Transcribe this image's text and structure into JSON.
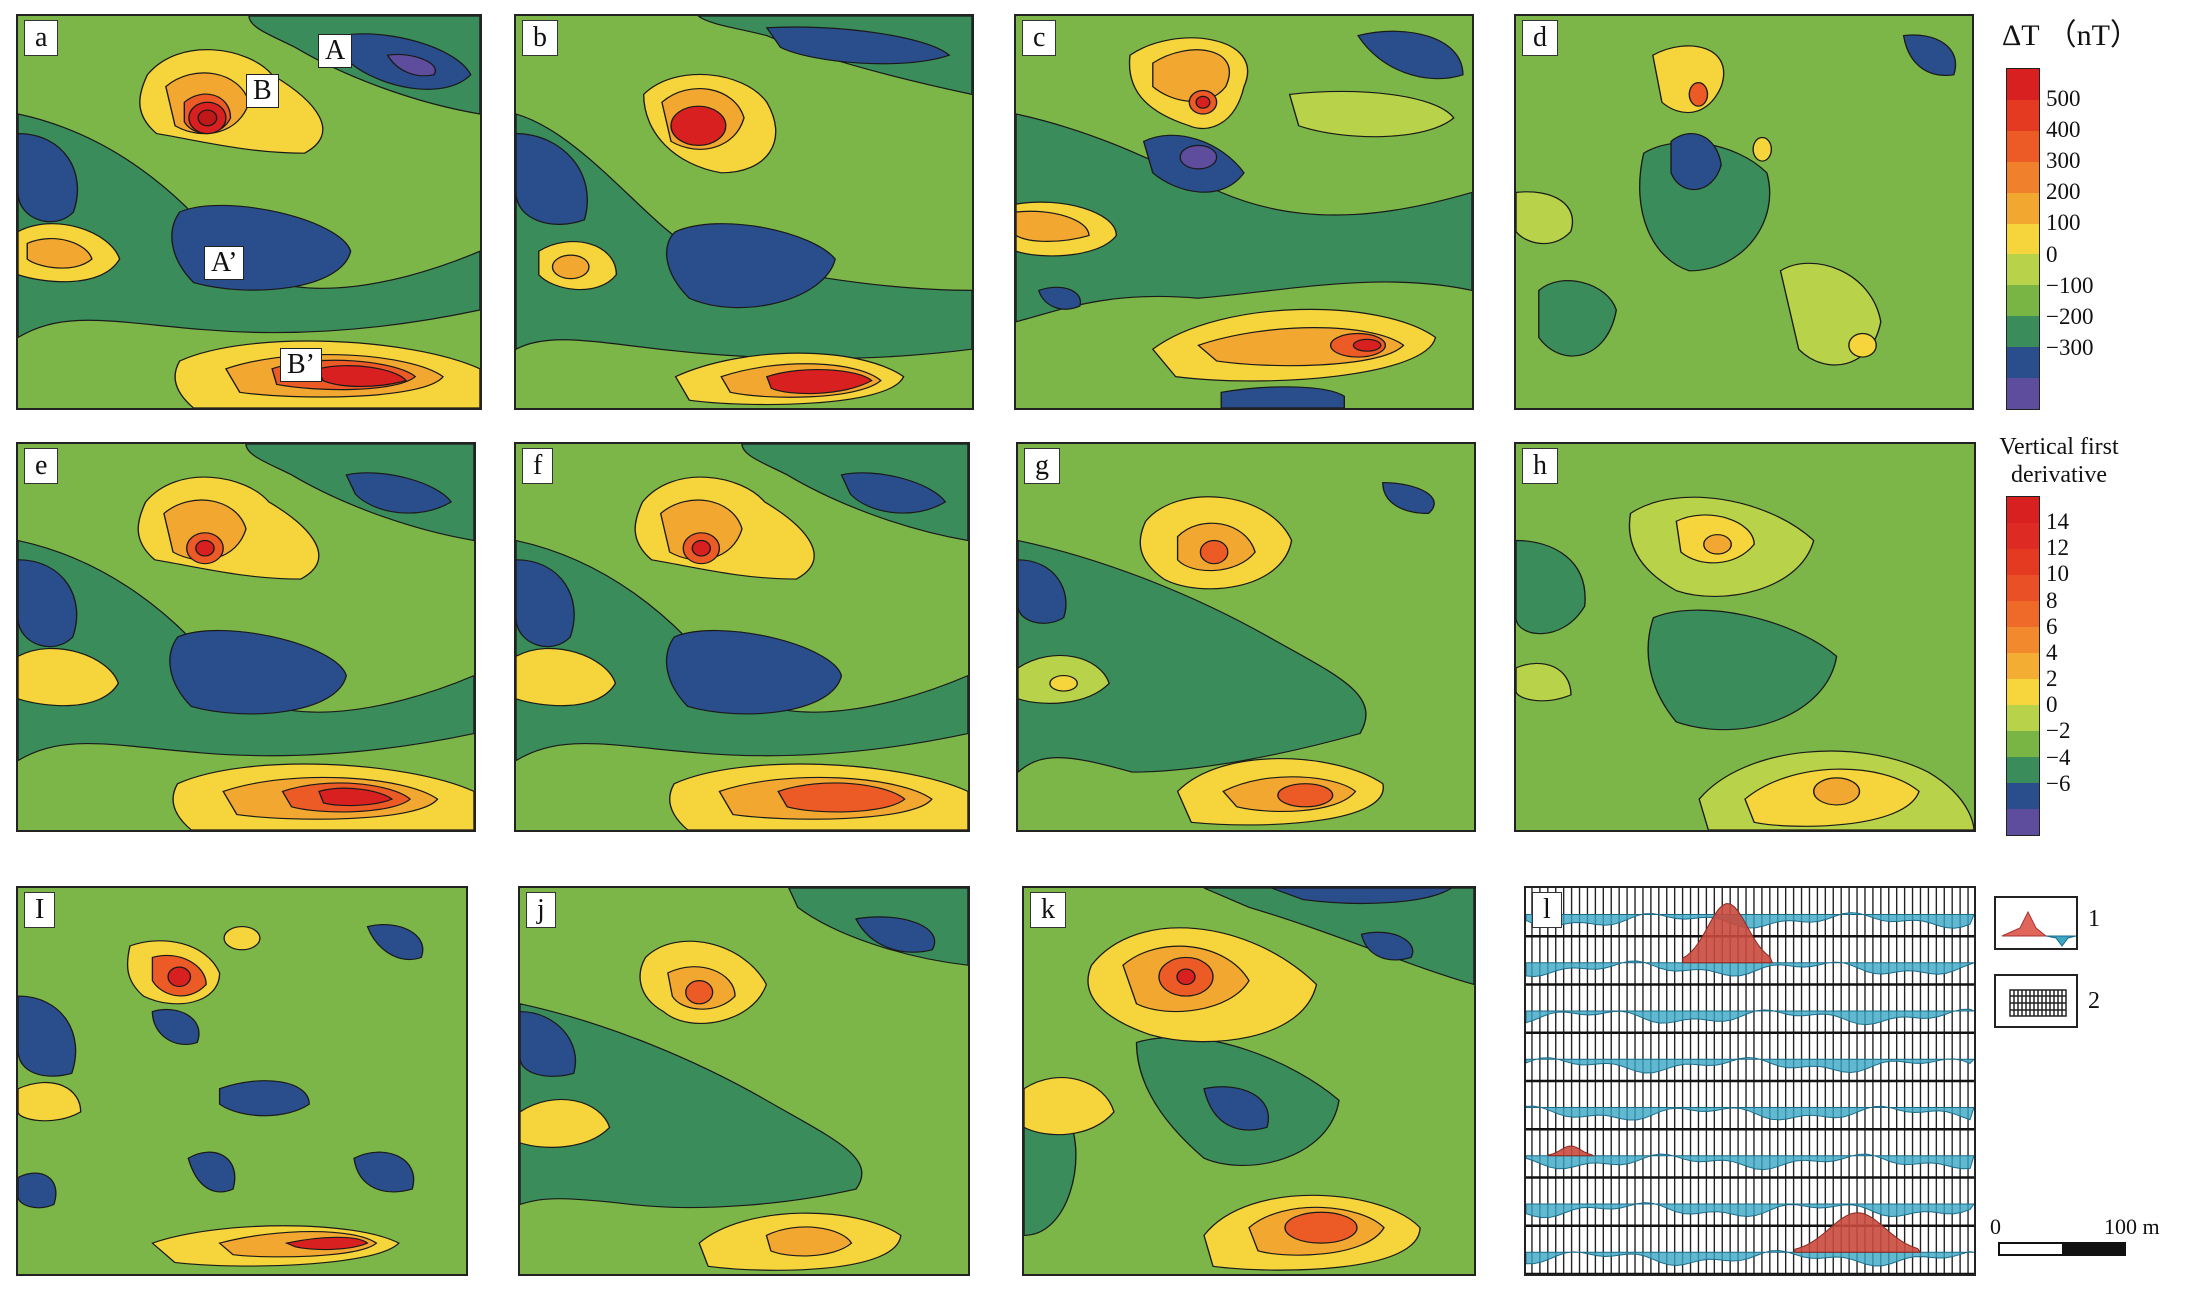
{
  "panels": [
    {
      "id": "a",
      "label": "a"
    },
    {
      "id": "b",
      "label": "b"
    },
    {
      "id": "c",
      "label": "c"
    },
    {
      "id": "d",
      "label": "d"
    },
    {
      "id": "e",
      "label": "e"
    },
    {
      "id": "f",
      "label": "f"
    },
    {
      "id": "g",
      "label": "g"
    },
    {
      "id": "h",
      "label": "h"
    },
    {
      "id": "i",
      "label": "I"
    },
    {
      "id": "j",
      "label": "j"
    },
    {
      "id": "k",
      "label": "k"
    },
    {
      "id": "l",
      "label": "l"
    }
  ],
  "anomaly_labels": {
    "A": "A",
    "B": "B",
    "A_prime": "A’",
    "B_prime": "B’"
  },
  "legend_dT": {
    "title": "ΔT （nT）",
    "ticks": [
      "500",
      "400",
      "300",
      "200",
      "100",
      "0",
      "−100",
      "−200",
      "−300"
    ],
    "colors": [
      "#d82020",
      "#e43a22",
      "#ec5a26",
      "#f0802c",
      "#f2a830",
      "#f5d43c",
      "#b8d24a",
      "#79b545",
      "#3a8c5a",
      "#2a4d8c",
      "#5e4c9c"
    ]
  },
  "legend_vfd": {
    "title_line1": "Vertical first",
    "title_line2": "derivative",
    "ticks": [
      "14",
      "12",
      "10",
      "8",
      "6",
      "4",
      "2",
      "0",
      "−2",
      "−4",
      "−6"
    ],
    "colors": [
      "#d82020",
      "#dd2a22",
      "#e43a22",
      "#ea5025",
      "#ef6a28",
      "#f28a2d",
      "#f3ad32",
      "#f6d63c",
      "#b8d24a",
      "#79b545",
      "#3a8c5a",
      "#2a4d8c",
      "#5e4c9c"
    ]
  },
  "key": {
    "item1": "1",
    "item2": "2"
  },
  "scale": {
    "start": "0",
    "end": "100 m"
  },
  "colors": {
    "high": "#d82020",
    "low": "#2a4d8c",
    "bg": "#7cb648"
  }
}
